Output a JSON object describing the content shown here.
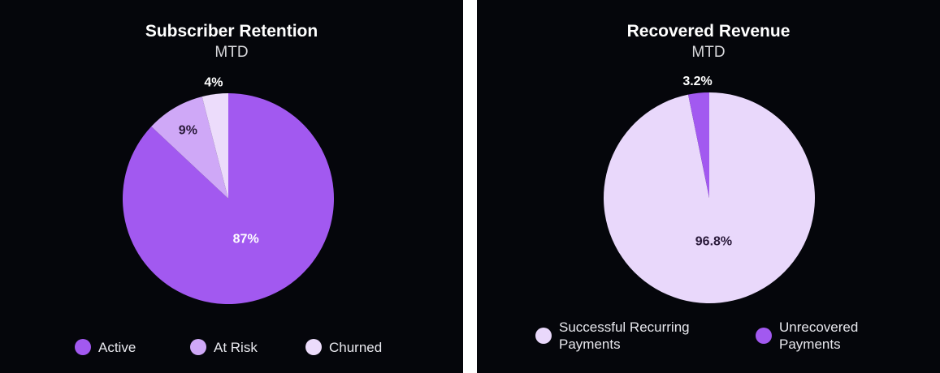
{
  "chart_data": [
    {
      "type": "pie",
      "title": "Subscriber Retention",
      "subtitle": "MTD",
      "categories": [
        "Active",
        "At Risk",
        "Churned"
      ],
      "values": [
        87,
        9,
        4
      ],
      "value_labels": [
        "87%",
        "9%",
        "4%"
      ],
      "colors": [
        "#a259f0",
        "#cfa8f7",
        "#ecdcfb"
      ]
    },
    {
      "type": "pie",
      "title": "Recovered Revenue",
      "subtitle": "MTD",
      "categories": [
        "Successful Recurring Payments",
        "Unrecovered Payments"
      ],
      "values": [
        96.8,
        3.2
      ],
      "value_labels": [
        "96.8%",
        "3.2%"
      ],
      "colors": [
        "#e9d8fb",
        "#a259f0"
      ]
    }
  ]
}
